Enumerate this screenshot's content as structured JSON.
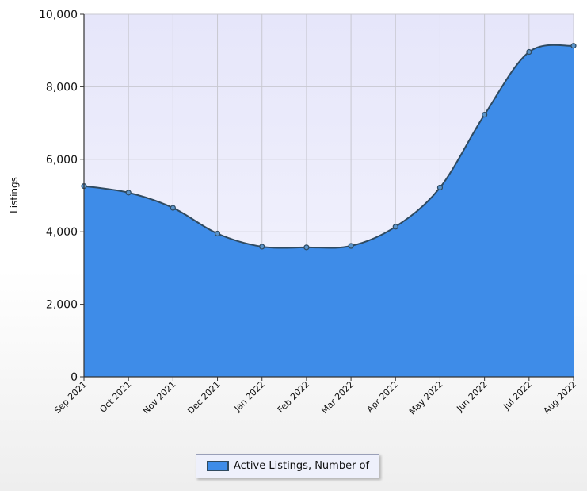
{
  "chart_data": {
    "type": "area",
    "x": [
      "Sep 2021",
      "Oct 2021",
      "Nov 2021",
      "Dec 2021",
      "Jan 2022",
      "Feb 2022",
      "Mar 2022",
      "Apr 2022",
      "May 2022",
      "Jun 2022",
      "Jul 2022",
      "Aug 2022"
    ],
    "series": [
      {
        "name": "Active Listings, Number of",
        "values": [
          5260,
          5080,
          4660,
          3950,
          3590,
          3570,
          3610,
          4140,
          5220,
          7230,
          8960,
          9130
        ]
      }
    ],
    "ylabel": "Listings",
    "xlabel": "",
    "ylim": [
      0,
      10000
    ],
    "yticks": [
      0,
      2000,
      4000,
      6000,
      8000,
      10000
    ],
    "ytick_labels": [
      "0",
      "2,000",
      "4,000",
      "6,000",
      "8,000",
      "10,000"
    ],
    "grid": true,
    "legend_position": "bottom-center",
    "colors": {
      "fill": "#3e8ce8",
      "line": "#2f4a60",
      "plot_bg_top": "#e6e6fa",
      "plot_bg_bottom": "#f4f4fc",
      "grid": "#c8c8d0"
    }
  }
}
